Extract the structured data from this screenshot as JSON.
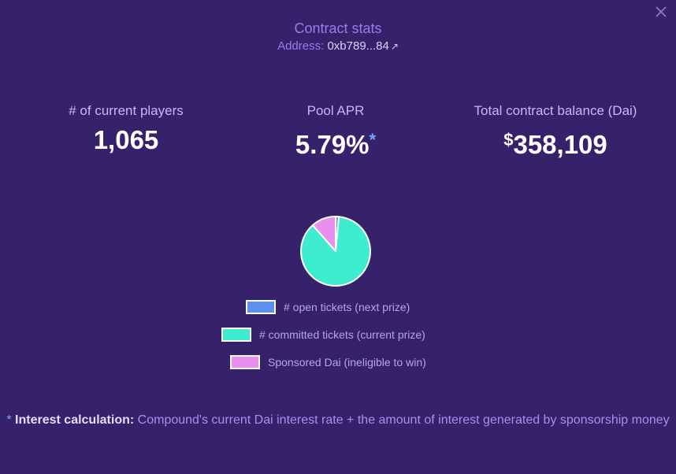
{
  "modal": {
    "title": "Contract stats",
    "address_label": "Address:",
    "address_value": "0xb789...84",
    "external_link_glyph": "↗",
    "close_icon": "close-icon"
  },
  "stats": [
    {
      "label": "# of current players",
      "value": "1,065"
    },
    {
      "label": "Pool APR",
      "value": "5.79%",
      "marker": "*"
    },
    {
      "label": "Total contract balance (Dai)",
      "currency": "$",
      "value": "358,109"
    }
  ],
  "chart_data": {
    "type": "pie",
    "slices": [
      {
        "label": "# open tickets (next prize)",
        "value": 1.5,
        "color": "#5b8ff0"
      },
      {
        "label": "# committed tickets (current prize)",
        "value": 87,
        "color": "#3eecd0"
      },
      {
        "label": "Sponsored Dai (ineligible to win)",
        "value": 11.5,
        "color": "#e88ff0"
      }
    ],
    "legend_placement": "bottom"
  },
  "legend": [
    {
      "label": "# open tickets (next prize)",
      "color": "#5b8ff0"
    },
    {
      "label": "# committed tickets (current prize)",
      "color": "#3eecd0"
    },
    {
      "label": "Sponsored Dai (ineligible to win)",
      "color": "#e88ff0"
    }
  ],
  "footnote": {
    "star": "*",
    "heading": "Interest calculation:",
    "text": "Compound's current Dai interest rate + the amount of interest generated by sponsorship money"
  }
}
